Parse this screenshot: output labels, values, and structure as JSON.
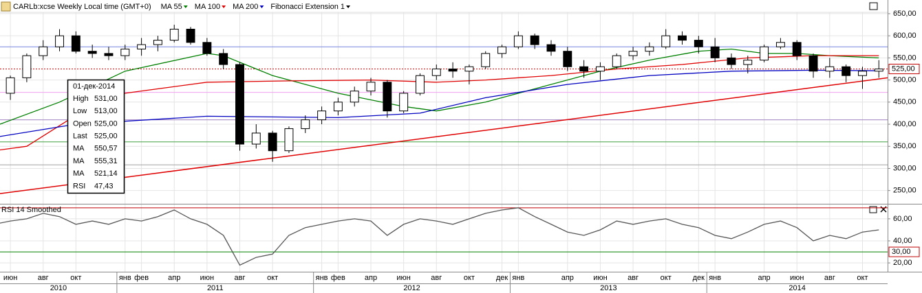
{
  "header": {
    "title": "CARLb:xcse Weekly Local time (GMT+0)",
    "indicators": [
      {
        "label": "MA 55",
        "color": "#008000"
      },
      {
        "label": "MA 100",
        "color": "#e00000"
      },
      {
        "label": "MA 200",
        "color": "#0000c0"
      },
      {
        "label": "Fibonacci Extension 1",
        "color": "#000000"
      }
    ]
  },
  "chart_data": [
    {
      "type": "candlestick",
      "xlim": [
        "2010-05-27",
        "2014-12-02"
      ],
      "ylim": [
        220,
        653
      ],
      "grid": true,
      "x": [
        "2010-06",
        "2010-07",
        "2010-08",
        "2010-09",
        "2010-10",
        "2010-11",
        "2010-12",
        "2011-01",
        "2011-02",
        "2011-03",
        "2011-04",
        "2011-05",
        "2011-06",
        "2011-07",
        "2011-08",
        "2011-09",
        "2011-10",
        "2011-11",
        "2011-12",
        "2012-01",
        "2012-02",
        "2012-03",
        "2012-04",
        "2012-05",
        "2012-06",
        "2012-07",
        "2012-08",
        "2012-09",
        "2012-10",
        "2012-11",
        "2012-12",
        "2013-01",
        "2013-02",
        "2013-03",
        "2013-04",
        "2013-05",
        "2013-06",
        "2013-07",
        "2013-08",
        "2013-09",
        "2013-10",
        "2013-11",
        "2013-12",
        "2014-01",
        "2014-02",
        "2014-03",
        "2014-04",
        "2014-05",
        "2014-06",
        "2014-07",
        "2014-08",
        "2014-09",
        "2014-10",
        "2014-11"
      ],
      "open": [
        470,
        505,
        555,
        575,
        600,
        565,
        560,
        555,
        570,
        580,
        590,
        615,
        585,
        560,
        535,
        355,
        380,
        340,
        390,
        410,
        430,
        450,
        475,
        495,
        430,
        470,
        510,
        525,
        520,
        530,
        560,
        575,
        600,
        580,
        565,
        530,
        520,
        530,
        555,
        565,
        575,
        600,
        590,
        575,
        550,
        535,
        545,
        575,
        585,
        555,
        520,
        530,
        510,
        520
      ],
      "high": [
        510,
        560,
        590,
        615,
        610,
        580,
        575,
        580,
        595,
        600,
        625,
        620,
        595,
        570,
        540,
        400,
        385,
        395,
        420,
        440,
        460,
        485,
        505,
        500,
        475,
        515,
        535,
        540,
        535,
        565,
        580,
        610,
        605,
        590,
        575,
        545,
        540,
        560,
        575,
        585,
        615,
        610,
        600,
        595,
        560,
        555,
        580,
        595,
        590,
        560,
        550,
        535,
        530,
        545
      ],
      "low": [
        455,
        495,
        545,
        565,
        560,
        550,
        545,
        545,
        555,
        565,
        585,
        580,
        555,
        525,
        340,
        345,
        315,
        335,
        380,
        400,
        420,
        440,
        465,
        415,
        425,
        465,
        500,
        505,
        490,
        525,
        550,
        570,
        570,
        555,
        520,
        505,
        500,
        525,
        545,
        555,
        570,
        580,
        560,
        540,
        525,
        515,
        540,
        570,
        545,
        505,
        505,
        495,
        480,
        505
      ],
      "close": [
        505,
        555,
        575,
        600,
        565,
        560,
        555,
        570,
        580,
        590,
        615,
        585,
        560,
        535,
        355,
        380,
        340,
        390,
        410,
        430,
        450,
        475,
        495,
        430,
        470,
        510,
        525,
        520,
        530,
        560,
        575,
        600,
        580,
        565,
        530,
        520,
        530,
        555,
        565,
        575,
        600,
        590,
        575,
        550,
        535,
        545,
        575,
        585,
        555,
        520,
        530,
        510,
        520,
        525
      ],
      "yticks": [
        {
          "value": 650,
          "label": "650,00"
        },
        {
          "value": 600,
          "label": "600,00"
        },
        {
          "value": 550,
          "label": "550,00"
        },
        {
          "value": 500,
          "label": "500,00"
        },
        {
          "value": 450,
          "label": "450,00"
        },
        {
          "value": 400,
          "label": "400,00"
        },
        {
          "value": 350,
          "label": "350,00"
        },
        {
          "value": 300,
          "label": "300,00"
        },
        {
          "value": 250,
          "label": "250,00"
        }
      ],
      "last_label": {
        "value": 525,
        "label": "525,00"
      },
      "series": [
        {
          "name": "MA 55",
          "color": "#008000",
          "x": [
            "2010-05",
            "2010-09",
            "2011-01",
            "2011-06",
            "2011-07",
            "2011-10",
            "2012-02",
            "2012-06",
            "2012-08",
            "2012-11",
            "2013-03",
            "2013-06",
            "2013-09",
            "2013-12",
            "2014-02",
            "2014-04",
            "2014-06",
            "2014-08",
            "2014-11"
          ],
          "values": [
            395,
            450,
            520,
            560,
            555,
            510,
            470,
            440,
            430,
            450,
            490,
            520,
            545,
            565,
            570,
            560,
            560,
            555,
            550
          ]
        },
        {
          "name": "MA 100",
          "color": "#e00000",
          "x": [
            "2010-05",
            "2010-07",
            "2010-10",
            "2011-01",
            "2011-06",
            "2011-11",
            "2012-04",
            "2012-08",
            "2012-11",
            "2013-03",
            "2013-07",
            "2013-11",
            "2014-03",
            "2014-07",
            "2014-11"
          ],
          "values": [
            340,
            350,
            420,
            470,
            495,
            498,
            500,
            495,
            500,
            510,
            525,
            535,
            550,
            555,
            555
          ]
        },
        {
          "name": "MA 200",
          "color": "#0000c0",
          "x": [
            "2010-05",
            "2010-10",
            "2011-06",
            "2012-02",
            "2012-07",
            "2012-11",
            "2013-04",
            "2013-09",
            "2014-02",
            "2014-07",
            "2014-11"
          ],
          "values": [
            370,
            400,
            418,
            415,
            425,
            460,
            490,
            510,
            520,
            522,
            521
          ]
        }
      ],
      "trendline": {
        "color": "#e00000",
        "x": [
          "2010-05-27",
          "2014-12-02"
        ],
        "values": [
          243,
          505
        ]
      },
      "levels": [
        {
          "value": 575,
          "color": "#7080e0"
        },
        {
          "value": 525,
          "color": "#c00000"
        },
        {
          "value": 472,
          "color": "#f0a0f0"
        },
        {
          "value": 410,
          "color": "#a080c0"
        },
        {
          "value": 360,
          "color": "#40a040"
        },
        {
          "value": 308,
          "color": "#a0a0a0"
        }
      ],
      "xticks": [
        {
          "value": "2010-06",
          "label": "июн"
        },
        {
          "value": "2010-08",
          "label": "авг"
        },
        {
          "value": "2010-10",
          "label": "окт"
        },
        {
          "value": "2011-01",
          "label": "янв"
        },
        {
          "value": "2011-02",
          "label": "фев"
        },
        {
          "value": "2011-04",
          "label": "апр"
        },
        {
          "value": "2011-06",
          "label": "июн"
        },
        {
          "value": "2011-08",
          "label": "авг"
        },
        {
          "value": "2011-10",
          "label": "окт"
        },
        {
          "value": "2012-01",
          "label": "янв"
        },
        {
          "value": "2012-02",
          "label": "фев"
        },
        {
          "value": "2012-04",
          "label": "апр"
        },
        {
          "value": "2012-06",
          "label": "июн"
        },
        {
          "value": "2012-08",
          "label": "авг"
        },
        {
          "value": "2012-10",
          "label": "окт"
        },
        {
          "value": "2012-12",
          "label": "дек"
        },
        {
          "value": "2013-01",
          "label": "янв"
        },
        {
          "value": "2013-04",
          "label": "апр"
        },
        {
          "value": "2013-06",
          "label": "июн"
        },
        {
          "value": "2013-08",
          "label": "авг"
        },
        {
          "value": "2013-10",
          "label": "окт"
        },
        {
          "value": "2013-12",
          "label": "дек"
        },
        {
          "value": "2014-01",
          "label": "янв"
        },
        {
          "value": "2014-04",
          "label": "апр"
        },
        {
          "value": "2014-06",
          "label": "июн"
        },
        {
          "value": "2014-08",
          "label": "авг"
        },
        {
          "value": "2014-10",
          "label": "окт"
        }
      ],
      "years": [
        "2010",
        "2011",
        "2012",
        "2013",
        "2014"
      ]
    },
    {
      "type": "line",
      "title": "RSI 14 Smoothed",
      "ylim": [
        12,
        73
      ],
      "yticks": [
        {
          "value": 60,
          "label": "60,00"
        },
        {
          "value": 40,
          "label": "40,00"
        },
        {
          "value": 20,
          "label": "20,00"
        }
      ],
      "bands": [
        {
          "value": 70,
          "color": "#c00000"
        },
        {
          "value": 30,
          "color": "#008000",
          "label": "30,00"
        }
      ],
      "series": [
        {
          "name": "RSI 14 Smoothed",
          "color": "#555555",
          "x": [
            "2010-05",
            "2010-06",
            "2010-07",
            "2010-08",
            "2010-09",
            "2010-10",
            "2010-11",
            "2010-12",
            "2011-01",
            "2011-02",
            "2011-03",
            "2011-04",
            "2011-05",
            "2011-06",
            "2011-07",
            "2011-08",
            "2011-09",
            "2011-10",
            "2011-11",
            "2011-12",
            "2012-01",
            "2012-02",
            "2012-03",
            "2012-04",
            "2012-05",
            "2012-06",
            "2012-07",
            "2012-08",
            "2012-09",
            "2012-10",
            "2012-11",
            "2012-12",
            "2013-01",
            "2013-02",
            "2013-03",
            "2013-04",
            "2013-05",
            "2013-06",
            "2013-07",
            "2013-08",
            "2013-09",
            "2013-10",
            "2013-11",
            "2013-12",
            "2014-01",
            "2014-02",
            "2014-03",
            "2014-04",
            "2014-05",
            "2014-06",
            "2014-07",
            "2014-08",
            "2014-09",
            "2014-10",
            "2014-11"
          ],
          "values": [
            55,
            58,
            60,
            65,
            62,
            55,
            58,
            55,
            60,
            58,
            62,
            68,
            60,
            55,
            45,
            18,
            25,
            28,
            45,
            52,
            55,
            58,
            60,
            58,
            45,
            55,
            60,
            58,
            55,
            60,
            65,
            68,
            70,
            62,
            55,
            48,
            45,
            50,
            58,
            55,
            58,
            60,
            55,
            52,
            45,
            42,
            48,
            55,
            58,
            52,
            40,
            45,
            42,
            48,
            50
          ]
        }
      ]
    }
  ],
  "tooltip": {
    "date": "01-дек-2014",
    "rows": [
      {
        "label": "High",
        "value": "531,00",
        "color": "#000"
      },
      {
        "label": "Low",
        "value": "513,00",
        "color": "#000"
      },
      {
        "label": "Open",
        "value": "525,00",
        "color": "#000"
      },
      {
        "label": "Last",
        "value": "525,00",
        "color": "#000"
      },
      {
        "label": "MA",
        "value": "550,57",
        "color": "#008000"
      },
      {
        "label": "MA",
        "value": "555,31",
        "color": "#e00000"
      },
      {
        "label": "MA",
        "value": "521,14",
        "color": "#0000c0"
      },
      {
        "label": "RSI",
        "value": "47,43",
        "color": "#000"
      }
    ]
  }
}
